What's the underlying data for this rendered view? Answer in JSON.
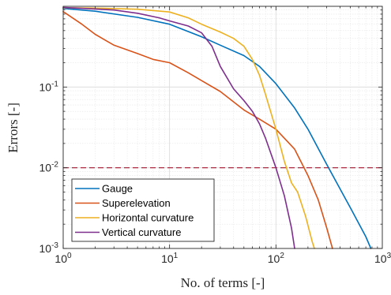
{
  "chart_data": {
    "type": "line",
    "xlabel": "No. of terms [-]",
    "ylabel": "Errors [-]",
    "xscale": "log",
    "yscale": "log",
    "xlim": [
      1,
      1000
    ],
    "ylim": [
      0.001,
      1
    ],
    "grid": true,
    "legend_position": "bottom-left",
    "x_ticks": [
      {
        "value": 1,
        "label_base": "10",
        "label_exp": "0"
      },
      {
        "value": 10,
        "label_base": "10",
        "label_exp": "1"
      },
      {
        "value": 100,
        "label_base": "10",
        "label_exp": "2"
      },
      {
        "value": 1000,
        "label_base": "10",
        "label_exp": "3"
      }
    ],
    "y_ticks": [
      {
        "value": 0.001,
        "label_base": "10",
        "label_exp": "-3"
      },
      {
        "value": 0.01,
        "label_base": "10",
        "label_exp": "-2"
      },
      {
        "value": 0.1,
        "label_base": "10",
        "label_exp": "-1"
      }
    ],
    "threshold": {
      "y": 0.01,
      "color": "#A2142F",
      "style": "dashed"
    },
    "series": [
      {
        "name": "Gauge",
        "color": "#0072BD",
        "x": [
          1,
          2,
          5,
          10,
          20,
          30,
          50,
          70,
          100,
          150,
          200,
          300,
          500,
          700,
          780
        ],
        "y": [
          0.94,
          0.87,
          0.73,
          0.6,
          0.42,
          0.33,
          0.245,
          0.18,
          0.11,
          0.055,
          0.03,
          0.011,
          0.0032,
          0.0014,
          0.001
        ]
      },
      {
        "name": "Superelevation",
        "color": "#D95319",
        "x": [
          1,
          1.5,
          2,
          3,
          5,
          7,
          10,
          15,
          20,
          30,
          50,
          70,
          100,
          150,
          200,
          250,
          300,
          340
        ],
        "y": [
          0.86,
          0.6,
          0.45,
          0.33,
          0.26,
          0.22,
          0.2,
          0.15,
          0.12,
          0.088,
          0.052,
          0.04,
          0.03,
          0.017,
          0.008,
          0.004,
          0.0018,
          0.001
        ]
      },
      {
        "name": "Horizontal curvature",
        "color": "#EDB120",
        "x": [
          1,
          2,
          5,
          10,
          15,
          20,
          30,
          40,
          50,
          60,
          70,
          80,
          100,
          120,
          140,
          160,
          190,
          220,
          230
        ],
        "y": [
          0.96,
          0.95,
          0.92,
          0.85,
          0.72,
          0.6,
          0.48,
          0.4,
          0.32,
          0.22,
          0.14,
          0.08,
          0.03,
          0.012,
          0.0065,
          0.005,
          0.0025,
          0.0012,
          0.001
        ]
      },
      {
        "name": "Vertical curvature",
        "color": "#7E2F8E",
        "x": [
          1,
          3,
          5,
          8,
          10,
          15,
          20,
          25,
          30,
          40,
          50,
          60,
          70,
          80,
          100,
          120,
          140,
          150
        ],
        "y": [
          0.97,
          0.9,
          0.82,
          0.72,
          0.66,
          0.57,
          0.47,
          0.32,
          0.18,
          0.095,
          0.068,
          0.05,
          0.035,
          0.023,
          0.01,
          0.0045,
          0.0018,
          0.001
        ]
      }
    ]
  }
}
